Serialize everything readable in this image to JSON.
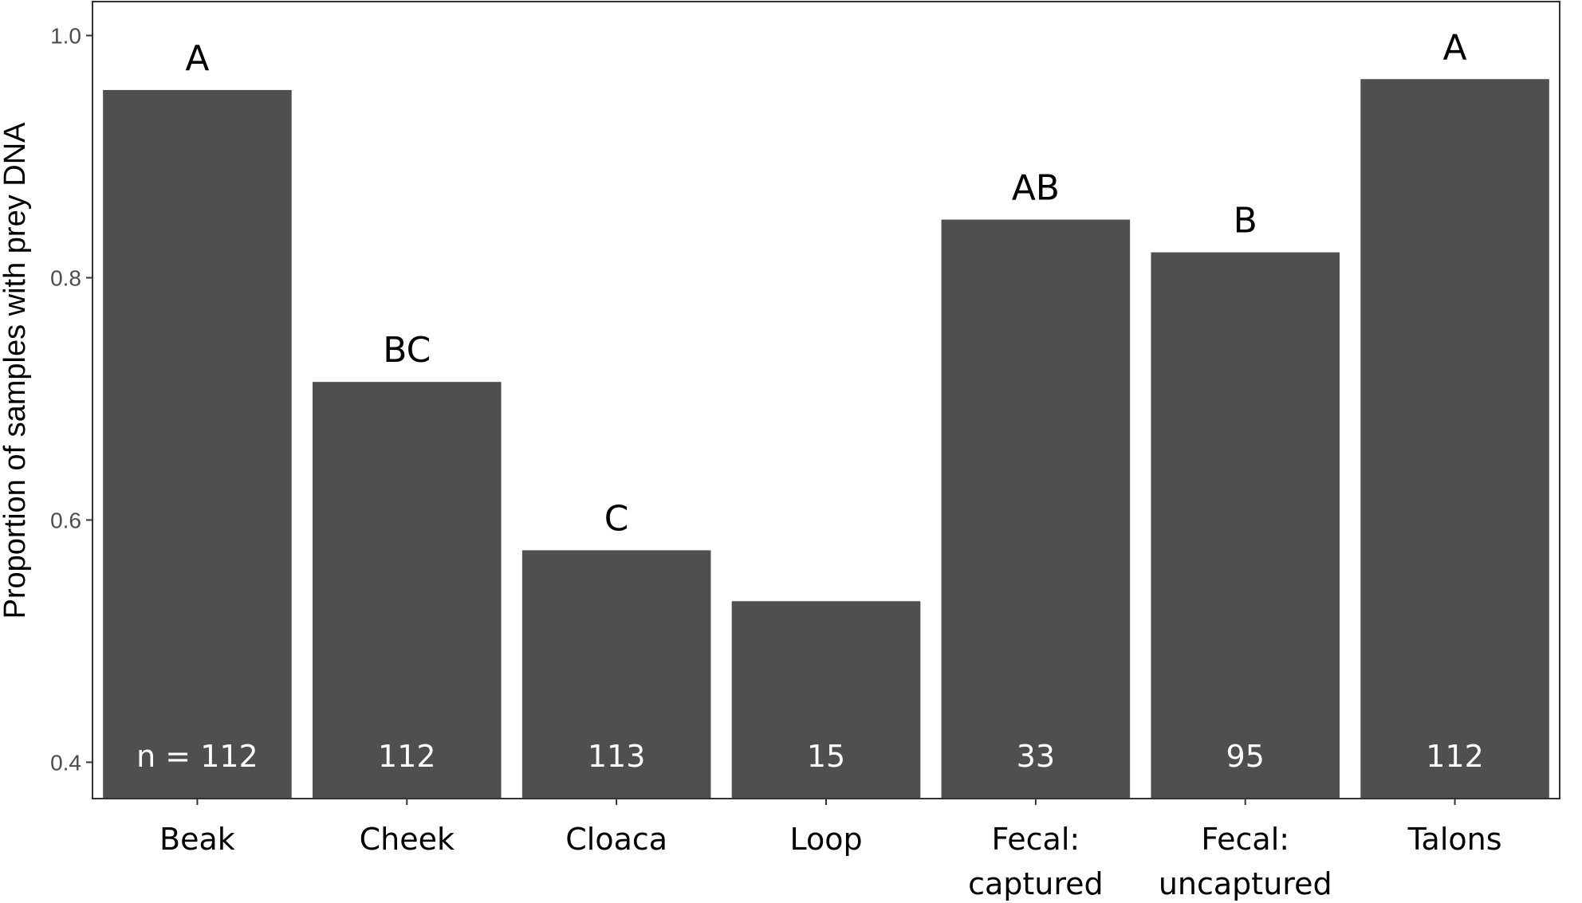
{
  "chart_data": {
    "type": "bar",
    "title": "",
    "xlabel": "",
    "ylabel": "Proportion of samples with prey DNA",
    "ylim": [
      0.37,
      1.028
    ],
    "yticks": [
      "0.4",
      "0.6",
      "0.8",
      "1.0"
    ],
    "grid": false,
    "categories": [
      [
        "Beak"
      ],
      [
        "Cheek"
      ],
      [
        "Cloaca"
      ],
      [
        "Loop"
      ],
      [
        "Fecal:",
        "captured"
      ],
      [
        "Fecal:",
        "uncaptured"
      ],
      [
        "Talons"
      ]
    ],
    "values": [
      0.955,
      0.714,
      0.575,
      0.533,
      0.848,
      0.821,
      0.964
    ],
    "n_labels": [
      "n = 112",
      "112",
      "113",
      "15",
      "33",
      "95",
      "112"
    ],
    "significance_letters": [
      "A",
      "BC",
      "C",
      "",
      "AB",
      "B",
      "A"
    ],
    "bar_color": "#4f4f4f",
    "axis_color": "#333333"
  }
}
